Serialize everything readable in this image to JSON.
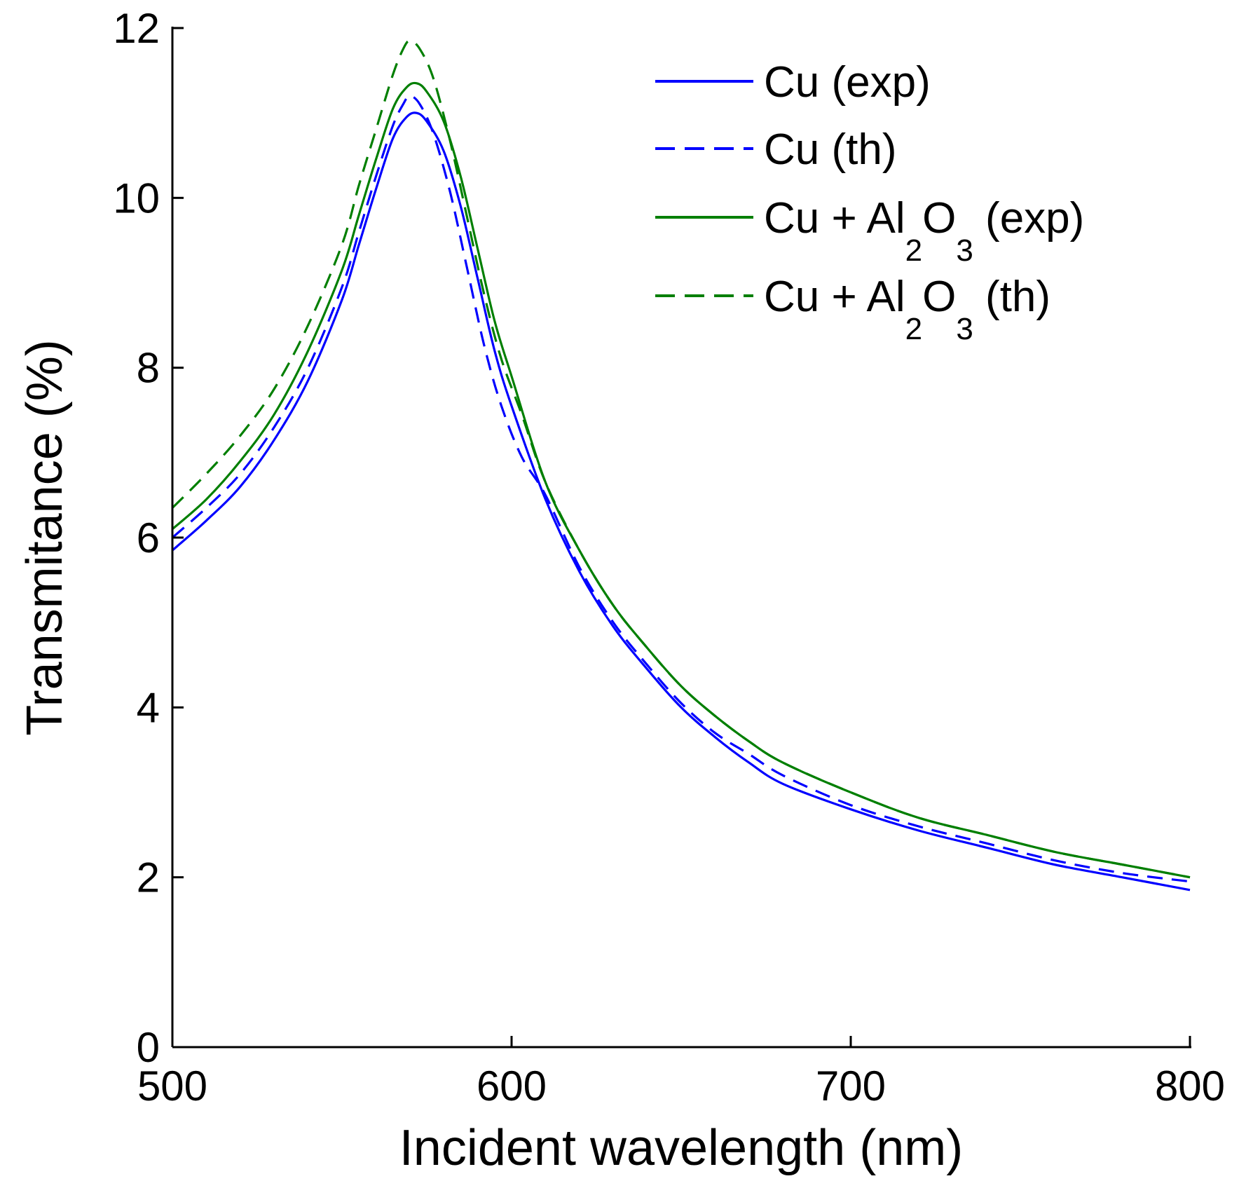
{
  "chart_data": {
    "type": "line",
    "title": "",
    "xlabel": "Incident wavelength (nm)",
    "ylabel": "Transmitance (%)",
    "xlim": [
      500,
      800
    ],
    "ylim": [
      0,
      12
    ],
    "xticks": [
      500,
      600,
      700,
      800
    ],
    "yticks": [
      0,
      2,
      4,
      6,
      8,
      10,
      12
    ],
    "xtick_labels": [
      "500",
      "600",
      "700",
      "800"
    ],
    "ytick_labels": [
      "0",
      "2",
      "4",
      "6",
      "8",
      "10",
      "12"
    ],
    "grid": false,
    "legend_position": "top-right",
    "series": [
      {
        "name": "Cu (exp)",
        "legend_parts": [
          "Cu (exp)"
        ],
        "color": "#0000ff",
        "dashed": false,
        "x": [
          500,
          510,
          520,
          530,
          540,
          550,
          555,
          560,
          565,
          569,
          572,
          575,
          580,
          585,
          590,
          595,
          600,
          610,
          620,
          630,
          640,
          650,
          660,
          670,
          680,
          700,
          720,
          740,
          760,
          780,
          800
        ],
        "y": [
          5.85,
          6.2,
          6.6,
          7.15,
          7.85,
          8.8,
          9.45,
          10.1,
          10.7,
          10.95,
          11.0,
          10.9,
          10.55,
          9.9,
          9.05,
          8.2,
          7.55,
          6.45,
          5.6,
          4.95,
          4.45,
          4.0,
          3.65,
          3.35,
          3.1,
          2.8,
          2.55,
          2.35,
          2.15,
          2.0,
          1.85
        ]
      },
      {
        "name": "Cu (th)",
        "legend_parts": [
          "Cu (th)"
        ],
        "color": "#0000ff",
        "dashed": true,
        "x": [
          500,
          510,
          520,
          530,
          540,
          550,
          555,
          560,
          565,
          568,
          570,
          573,
          577,
          582,
          587,
          592,
          597,
          603,
          610,
          620,
          630,
          640,
          650,
          660,
          670,
          680,
          700,
          720,
          740,
          760,
          780,
          800
        ],
        "y": [
          6.0,
          6.35,
          6.75,
          7.3,
          8.0,
          8.95,
          9.6,
          10.25,
          10.85,
          11.1,
          11.2,
          11.1,
          10.75,
          10.05,
          9.15,
          8.25,
          7.55,
          6.95,
          6.5,
          5.65,
          5.0,
          4.5,
          4.05,
          3.7,
          3.45,
          3.2,
          2.85,
          2.6,
          2.4,
          2.2,
          2.05,
          1.95
        ]
      },
      {
        "name": "Cu + Al2O3 (exp)",
        "legend_parts": [
          "Cu + Al",
          "2",
          "O",
          "3",
          " (exp)"
        ],
        "color": "#007f00",
        "dashed": false,
        "x": [
          500,
          510,
          520,
          530,
          540,
          550,
          555,
          560,
          565,
          569,
          572,
          575,
          580,
          585,
          590,
          595,
          600,
          610,
          620,
          630,
          640,
          650,
          660,
          670,
          680,
          700,
          720,
          740,
          760,
          780,
          800
        ],
        "y": [
          6.1,
          6.45,
          6.9,
          7.45,
          8.2,
          9.15,
          9.8,
          10.45,
          11.05,
          11.3,
          11.35,
          11.25,
          10.9,
          10.25,
          9.4,
          8.55,
          7.9,
          6.65,
          5.85,
          5.2,
          4.7,
          4.25,
          3.9,
          3.6,
          3.35,
          3.0,
          2.7,
          2.5,
          2.3,
          2.15,
          2.0
        ]
      },
      {
        "name": "Cu + Al2O3 (th)",
        "legend_parts": [
          "Cu + Al",
          "2",
          "O",
          "3",
          " (th)"
        ],
        "color": "#007f00",
        "dashed": true,
        "x": [
          500,
          510,
          520,
          530,
          540,
          550,
          555,
          560,
          565,
          568,
          570,
          573,
          577,
          582,
          587,
          592,
          597,
          603,
          610,
          620,
          630,
          640,
          650,
          660,
          670,
          680,
          700,
          720,
          740,
          760,
          780,
          800
        ],
        "y": [
          6.35,
          6.75,
          7.2,
          7.75,
          8.5,
          9.45,
          10.15,
          10.8,
          11.45,
          11.75,
          11.85,
          11.75,
          11.4,
          10.65,
          9.75,
          8.85,
          8.1,
          7.45,
          6.65,
          5.85,
          5.2,
          4.7,
          4.25,
          3.9,
          3.6,
          3.35,
          3.0,
          2.7,
          2.5,
          2.3,
          2.15,
          2.0
        ]
      }
    ]
  }
}
